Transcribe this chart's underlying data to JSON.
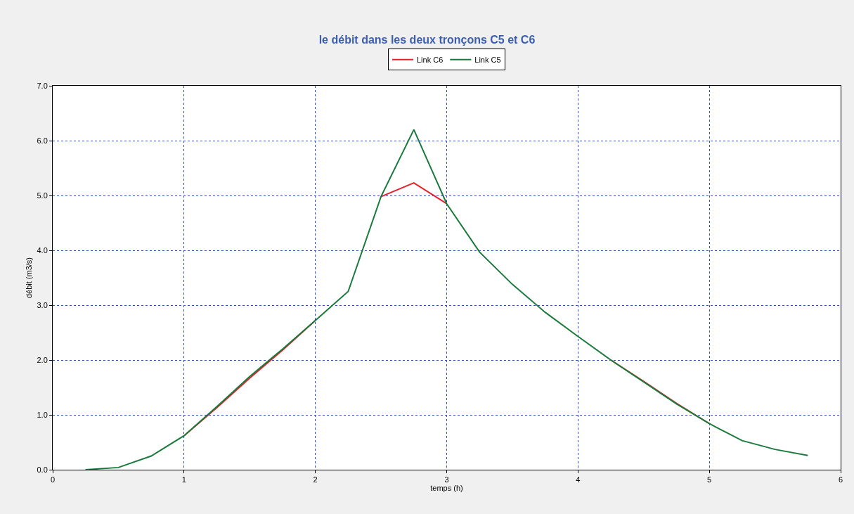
{
  "chart_data": {
    "type": "line",
    "title": "le débit dans les deux tronçons C5 et C6",
    "xlabel": "temps (h)",
    "ylabel": "débit (m3/s)",
    "x": [
      0.25,
      0.5,
      0.75,
      1.0,
      1.25,
      1.5,
      1.75,
      2.0,
      2.25,
      2.5,
      2.75,
      3.0,
      3.25,
      3.5,
      3.75,
      4.0,
      4.25,
      4.5,
      4.75,
      5.0,
      5.25,
      5.5,
      5.75
    ],
    "series": [
      {
        "name": "Link C6",
        "color": "#e8202a",
        "values": [
          null,
          null,
          null,
          0.62,
          1.13,
          1.67,
          2.18,
          2.72,
          null,
          4.98,
          5.23,
          4.85,
          null,
          null,
          null,
          null,
          2.0,
          1.61,
          1.21,
          0.84,
          null,
          null,
          null
        ]
      },
      {
        "name": "Link C5",
        "color": "#1a7a3c",
        "values": [
          0,
          0.04,
          0.25,
          0.62,
          1.15,
          1.7,
          2.2,
          2.72,
          3.25,
          4.98,
          6.2,
          4.85,
          3.97,
          3.38,
          2.87,
          2.43,
          2.0,
          1.6,
          1.2,
          0.84,
          0.53,
          0.37,
          0.26
        ]
      }
    ],
    "xlim": [
      0,
      6
    ],
    "xticks": [
      0,
      1,
      2,
      3,
      4,
      5,
      6
    ],
    "ylim": [
      0,
      7
    ],
    "yticks": [
      {
        "value": 0,
        "label": "0.0"
      },
      {
        "value": 1,
        "label": "1.0"
      },
      {
        "value": 2,
        "label": "2.0"
      },
      {
        "value": 3,
        "label": "3.0"
      },
      {
        "value": 4,
        "label": "4.0"
      },
      {
        "value": 5,
        "label": "5.0"
      },
      {
        "value": 6,
        "label": "6.0"
      },
      {
        "value": 7,
        "label": "7.0"
      }
    ],
    "grid": true,
    "legend": "top",
    "marker": "none",
    "line_style": "solid"
  }
}
